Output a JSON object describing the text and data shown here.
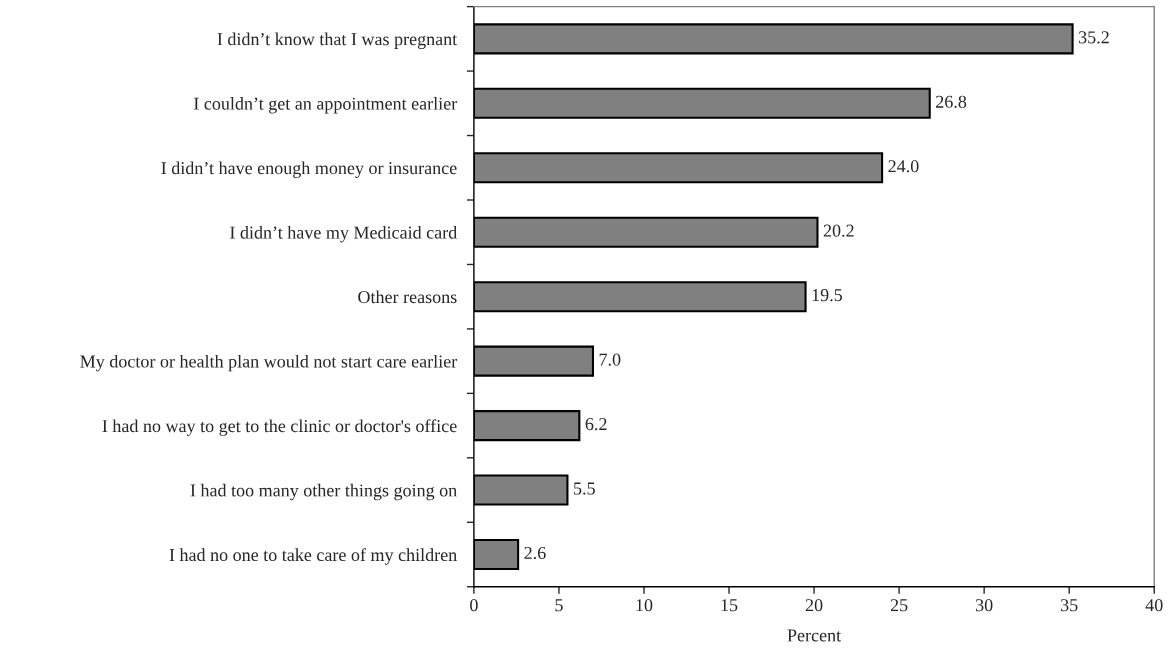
{
  "chart_data": {
    "type": "bar",
    "orientation": "horizontal",
    "xlabel": "Percent",
    "categories": [
      "I didn’t know that I was pregnant",
      "I couldn’t get an appointment earlier",
      "I didn’t have enough money or insurance",
      "I didn’t have my Medicaid card",
      "Other reasons",
      "My doctor or health plan would not start care earlier",
      "I had no way to get to the clinic or doctor's office",
      "I had too many other things going on",
      "I had no one to take care of my children"
    ],
    "values": [
      35.2,
      26.8,
      24.0,
      20.2,
      19.5,
      7.0,
      6.2,
      5.5,
      2.6
    ],
    "value_labels": [
      "35.2",
      "26.8",
      "24.0",
      "20.2",
      "19.5",
      "7.0",
      "6.2",
      "5.5",
      "2.6"
    ],
    "color": "#808080",
    "xlim": [
      0,
      40
    ],
    "xticks": [
      0,
      5,
      10,
      15,
      20,
      25,
      30,
      35,
      40
    ],
    "grid": false,
    "legend": false
  }
}
